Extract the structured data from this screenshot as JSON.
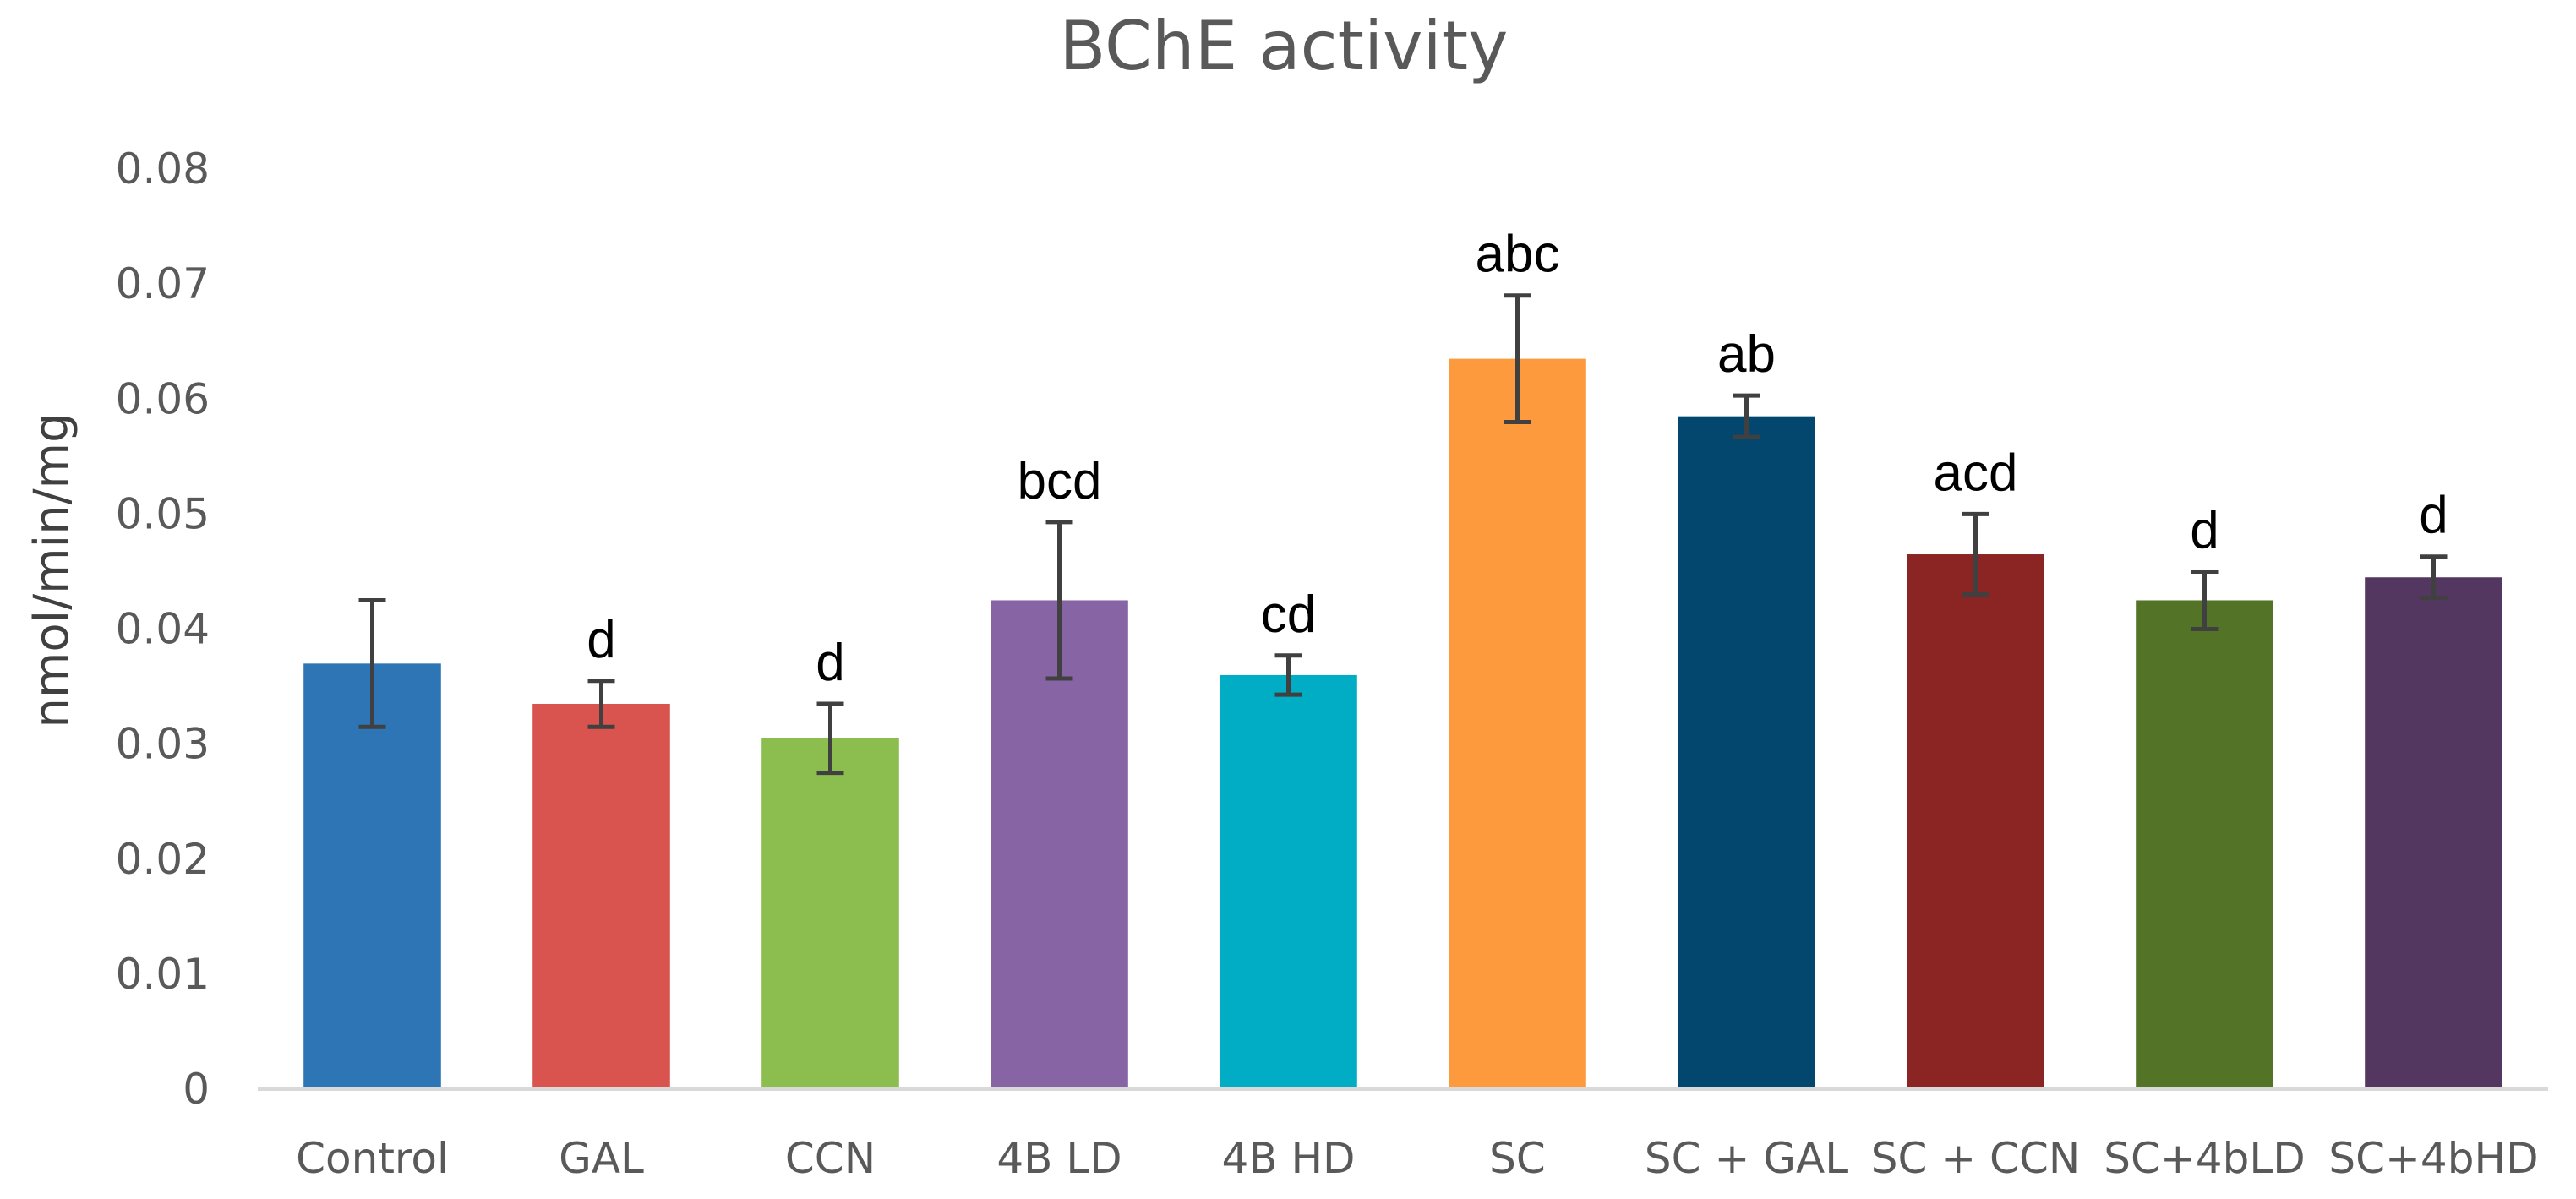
{
  "chart_data": {
    "type": "bar",
    "title": "BChE activity",
    "xlabel": "",
    "ylabel": "nmol/min/mg",
    "ylim": [
      0,
      0.08
    ],
    "yticks": [
      "0",
      "0.01",
      "0.02",
      "0.03",
      "0.04",
      "0.05",
      "0.06",
      "0.07",
      "0.08"
    ],
    "grid": false,
    "legend": "none",
    "categories": [
      "Control",
      "GAL",
      "CCN",
      "4B LD",
      "4B HD",
      "SC",
      "SC + GAL",
      "SC + CCN",
      "SC+4bLD",
      "SC+4bHD"
    ],
    "values": [
      0.037,
      0.0335,
      0.0305,
      0.0425,
      0.036,
      0.0635,
      0.0585,
      0.0465,
      0.0425,
      0.0445
    ],
    "errors": [
      0.0055,
      0.002,
      0.003,
      0.0068,
      0.0017,
      0.0055,
      0.0018,
      0.0035,
      0.0025,
      0.0018
    ],
    "significance_labels": [
      "",
      "d",
      "d",
      "bcd",
      "cd",
      "abc",
      "ab",
      "acd",
      "d",
      "d"
    ],
    "colors": [
      "#2e75b6",
      "#d9534f",
      "#8cbd4f",
      "#8764a3",
      "#00adc5",
      "#fd9a3e",
      "#03476f",
      "#8a2523",
      "#537326",
      "#533760"
    ]
  }
}
